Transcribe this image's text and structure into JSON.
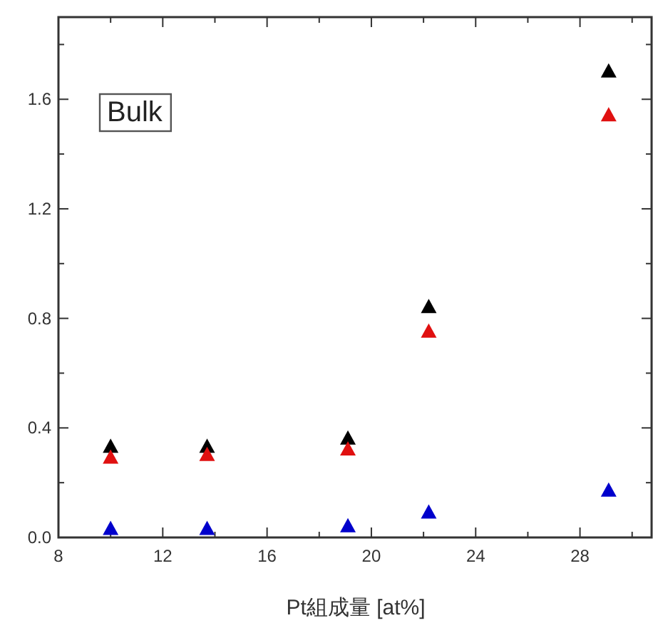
{
  "chart_data": {
    "type": "scatter",
    "xlabel": "Pt組成量 [at%]",
    "annotations": [
      "Bulk"
    ],
    "marker": "triangle",
    "x": [
      10.0,
      13.7,
      19.1,
      22.2,
      29.1
    ],
    "series": [
      {
        "color": "#000000",
        "values": [
          0.33,
          0.33,
          0.36,
          0.84,
          1.7
        ]
      },
      {
        "color": "#e01010",
        "values": [
          0.29,
          0.3,
          0.32,
          0.75,
          1.54
        ]
      },
      {
        "color": "#0000cc",
        "values": [
          0.03,
          0.03,
          0.04,
          0.09,
          0.17
        ]
      }
    ],
    "xlim": [
      8,
      30.8
    ],
    "ylim": [
      0,
      1.9
    ],
    "xticks": [
      8,
      {
        "value": 10,
        "label": null
      },
      12,
      {
        "value": 14,
        "label": null
      },
      16,
      {
        "value": 18,
        "label": null
      },
      20,
      {
        "value": 22,
        "label": null
      },
      24,
      {
        "value": 26,
        "label": null
      },
      28,
      {
        "value": 30,
        "label": null
      }
    ],
    "yticks": [
      {
        "value": 0,
        "label": "0.0"
      },
      {
        "value": 0.2,
        "label": null
      },
      0.4,
      {
        "value": 0.6,
        "label": null
      },
      0.8,
      {
        "value": 1.0,
        "label": null
      },
      1.2,
      {
        "value": 1.4,
        "label": null
      },
      1.6,
      {
        "value": 1.8,
        "label": null
      }
    ]
  }
}
